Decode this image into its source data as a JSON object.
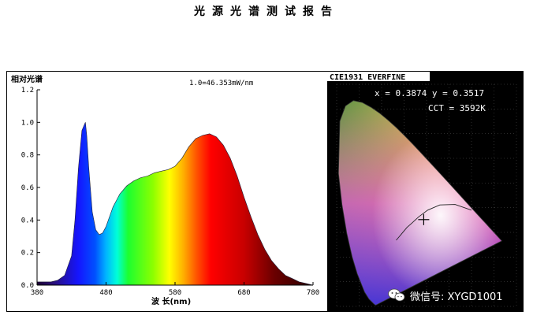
{
  "page_title": "光源光谱测试报告",
  "chart_data": [
    {
      "type": "area",
      "title": "1.0=46.353mW/nm",
      "ylabel": "相对光谱",
      "xlabel": "波 长(nm)",
      "xlim": [
        380,
        780
      ],
      "ylim": [
        0,
        1.2
      ],
      "xticks": [
        380,
        480,
        580,
        680,
        780
      ],
      "yticks": [
        0.0,
        0.2,
        0.4,
        0.6,
        0.8,
        1.0,
        1.2
      ],
      "ytick_labels": [
        "0.0",
        "0.2",
        "0.4",
        "0.6",
        "0.8",
        "1.0",
        "1.2"
      ],
      "fill": "visible-spectrum gradient",
      "series": [
        {
          "x": [
            380,
            400,
            410,
            420,
            430,
            435,
            440,
            445,
            450,
            452,
            455,
            460,
            465,
            470,
            475,
            480,
            485,
            490,
            500,
            510,
            520,
            530,
            540,
            550,
            560,
            570,
            580,
            590,
            600,
            610,
            620,
            630,
            640,
            650,
            660,
            670,
            680,
            690,
            700,
            710,
            720,
            730,
            740,
            750,
            760,
            770,
            780
          ],
          "y": [
            0.02,
            0.02,
            0.03,
            0.06,
            0.18,
            0.4,
            0.72,
            0.95,
            1.0,
            0.92,
            0.72,
            0.45,
            0.34,
            0.31,
            0.32,
            0.36,
            0.42,
            0.48,
            0.56,
            0.61,
            0.64,
            0.66,
            0.67,
            0.69,
            0.7,
            0.71,
            0.73,
            0.78,
            0.85,
            0.9,
            0.92,
            0.93,
            0.91,
            0.86,
            0.78,
            0.67,
            0.54,
            0.42,
            0.31,
            0.22,
            0.15,
            0.1,
            0.06,
            0.04,
            0.02,
            0.01,
            0.0
          ]
        }
      ]
    },
    {
      "type": "scatter",
      "title": "CIE1931 EVERFINE",
      "annotations": [
        "x = 0.3874 y = 0.3517",
        "CCT = 3592K"
      ],
      "x": [
        0.3874
      ],
      "y": [
        0.3517
      ],
      "xlim": [
        0,
        0.8
      ],
      "ylim": [
        0,
        0.9
      ]
    }
  ],
  "watermark": {
    "text": "微信号: XYGD1001",
    "icon": "wechat-icon"
  }
}
